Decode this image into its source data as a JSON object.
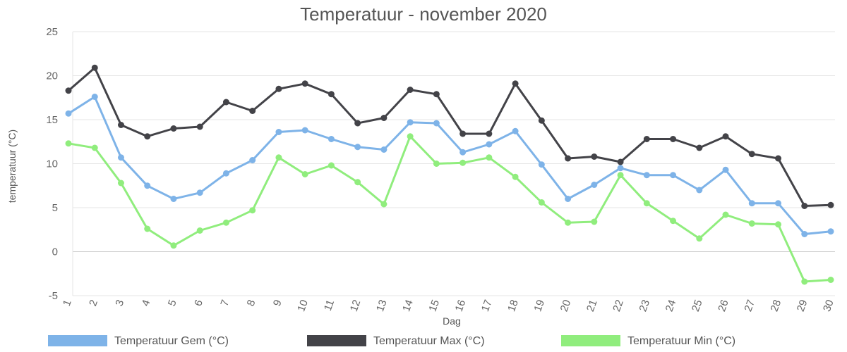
{
  "chart_data": {
    "type": "line",
    "title": "Temperatuur - november 2020",
    "xlabel": "Dag",
    "ylabel": "temperatuur (°C)",
    "ylim": [
      -5,
      25
    ],
    "yticks": [
      "-5",
      "0",
      "5",
      "10",
      "15",
      "20",
      "25"
    ],
    "categories": [
      "1",
      "2",
      "3",
      "4",
      "5",
      "6",
      "7",
      "8",
      "9",
      "10",
      "11",
      "12",
      "13",
      "14",
      "15",
      "16",
      "17",
      "18",
      "19",
      "20",
      "21",
      "22",
      "23",
      "24",
      "25",
      "26",
      "27",
      "28",
      "29",
      "30"
    ],
    "grid": true,
    "legend_position": "bottom",
    "series": [
      {
        "name": "Temperatuur Gem (°C)",
        "color": "#7eb3e8",
        "values": [
          15.7,
          17.6,
          10.7,
          7.5,
          6.0,
          6.7,
          8.9,
          10.4,
          13.6,
          13.8,
          12.8,
          11.9,
          11.6,
          14.7,
          14.6,
          11.3,
          12.2,
          13.7,
          9.9,
          6.0,
          7.6,
          9.5,
          8.7,
          8.7,
          7.0,
          9.3,
          5.5,
          5.5,
          2.0,
          2.3
        ]
      },
      {
        "name": "Temperatuur Max (°C)",
        "color": "#434348",
        "values": [
          18.3,
          20.9,
          14.4,
          13.1,
          14.0,
          14.2,
          17.0,
          16.0,
          18.5,
          19.1,
          17.9,
          14.6,
          15.2,
          18.4,
          17.9,
          13.4,
          13.4,
          19.1,
          14.9,
          10.6,
          10.8,
          10.2,
          12.8,
          12.8,
          11.8,
          13.1,
          11.1,
          10.6,
          5.2,
          5.3
        ]
      },
      {
        "name": "Temperatuur Min (°C)",
        "color": "#90ed7d",
        "values": [
          12.3,
          11.8,
          7.8,
          2.6,
          0.7,
          2.4,
          3.3,
          4.7,
          10.7,
          8.8,
          9.8,
          7.9,
          5.4,
          13.1,
          10.0,
          10.1,
          10.7,
          8.5,
          5.6,
          3.3,
          3.4,
          8.7,
          5.5,
          3.5,
          1.5,
          4.2,
          3.2,
          3.1,
          -3.4,
          -3.2
        ]
      }
    ]
  }
}
